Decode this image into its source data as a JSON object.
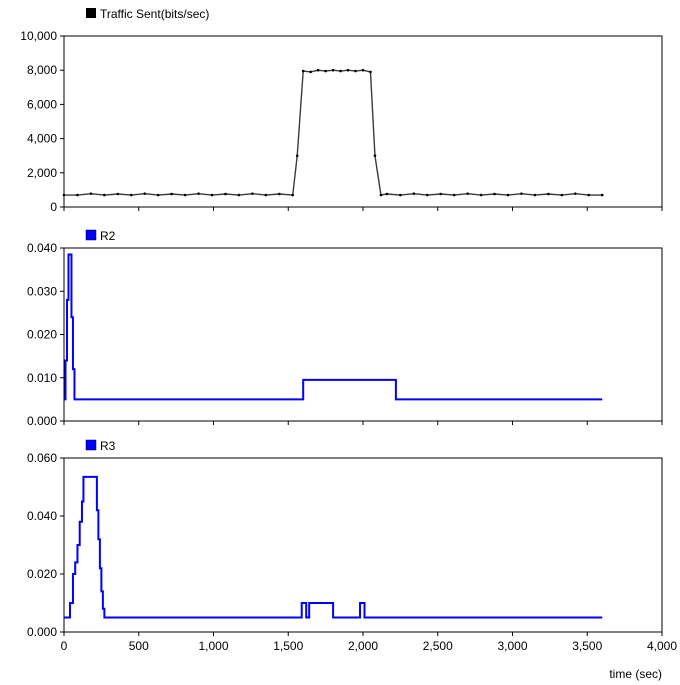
{
  "chart_data": [
    {
      "type": "line",
      "legend": "Traffic Sent(bits/sec)",
      "color": "#000000",
      "xlim": [
        0,
        4000
      ],
      "ylim": [
        0,
        10000
      ],
      "yticks": [
        0,
        2000,
        4000,
        6000,
        8000,
        10000
      ],
      "ytick_labels": [
        "0",
        "2,000",
        "4,000",
        "6,000",
        "8,000",
        "10,000"
      ],
      "grid": false,
      "x": [
        0,
        90,
        180,
        270,
        360,
        450,
        540,
        630,
        720,
        810,
        900,
        990,
        1080,
        1170,
        1260,
        1350,
        1440,
        1530,
        1560,
        1600,
        1650,
        1700,
        1750,
        1800,
        1850,
        1900,
        1950,
        2000,
        2050,
        2080,
        2120,
        2160,
        2250,
        2340,
        2430,
        2520,
        2610,
        2700,
        2790,
        2880,
        2970,
        3060,
        3150,
        3240,
        3330,
        3420,
        3510,
        3600
      ],
      "y": [
        700,
        700,
        780,
        700,
        760,
        700,
        780,
        700,
        760,
        700,
        780,
        700,
        760,
        700,
        780,
        700,
        760,
        700,
        3000,
        7950,
        7900,
        8000,
        7950,
        8000,
        7950,
        8000,
        7950,
        8000,
        7900,
        3000,
        700,
        760,
        700,
        780,
        700,
        760,
        700,
        780,
        700,
        760,
        700,
        780,
        700,
        760,
        700,
        780,
        700,
        700
      ]
    },
    {
      "type": "line",
      "legend": "R2",
      "color": "#0000ff",
      "xlim": [
        0,
        4000
      ],
      "ylim": [
        0,
        0.04
      ],
      "yticks": [
        0,
        0.01,
        0.02,
        0.03,
        0.04
      ],
      "ytick_labels": [
        "0.000",
        "0.010",
        "0.020",
        "0.030",
        "0.040"
      ],
      "grid": false,
      "x": [
        0,
        10,
        10,
        20,
        20,
        30,
        30,
        40,
        40,
        50,
        50,
        60,
        60,
        70,
        70,
        1600,
        1600,
        2220,
        2220,
        3600
      ],
      "y": [
        0.005,
        0.005,
        0.014,
        0.014,
        0.028,
        0.028,
        0.0385,
        0.0385,
        0.0385,
        0.0385,
        0.024,
        0.024,
        0.012,
        0.012,
        0.005,
        0.005,
        0.0095,
        0.0095,
        0.005,
        0.005
      ]
    },
    {
      "type": "line",
      "legend": "R3",
      "color": "#0000ff",
      "xlim": [
        0,
        4000
      ],
      "ylim": [
        0,
        0.06
      ],
      "yticks": [
        0,
        0.02,
        0.04,
        0.06
      ],
      "ytick_labels": [
        "0.000",
        "0.020",
        "0.040",
        "0.060"
      ],
      "grid": false,
      "x": [
        0,
        40,
        40,
        60,
        60,
        75,
        75,
        90,
        90,
        105,
        105,
        120,
        120,
        130,
        130,
        220,
        220,
        230,
        230,
        240,
        240,
        250,
        250,
        260,
        260,
        270,
        270,
        1590,
        1590,
        1620,
        1620,
        1640,
        1640,
        1800,
        1800,
        1980,
        1980,
        2010,
        2010,
        3600
      ],
      "y": [
        0.005,
        0.005,
        0.01,
        0.01,
        0.02,
        0.02,
        0.024,
        0.024,
        0.03,
        0.03,
        0.038,
        0.038,
        0.045,
        0.045,
        0.0535,
        0.0535,
        0.042,
        0.042,
        0.032,
        0.032,
        0.022,
        0.022,
        0.014,
        0.014,
        0.008,
        0.008,
        0.005,
        0.005,
        0.01,
        0.01,
        0.005,
        0.005,
        0.01,
        0.01,
        0.005,
        0.005,
        0.01,
        0.01,
        0.005,
        0.005
      ]
    }
  ],
  "x_axis": {
    "label": "time (sec)",
    "ticks": [
      0,
      500,
      1000,
      1500,
      2000,
      2500,
      3000,
      3500,
      4000
    ],
    "tick_labels": [
      "0",
      "500",
      "1,000",
      "1,500",
      "2,000",
      "2,500",
      "3,000",
      "3,500",
      "4,000"
    ]
  }
}
